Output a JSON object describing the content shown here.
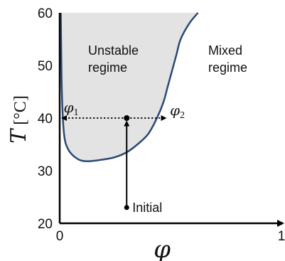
{
  "chart_data": {
    "type": "line",
    "title": "",
    "xlabel": "φ",
    "ylabel": "T",
    "ylabel_unit": "[°C]",
    "xlim": [
      0,
      1
    ],
    "ylim": [
      20,
      60
    ],
    "x_ticks": [
      "0",
      "1"
    ],
    "y_ticks": [
      "20",
      "30",
      "40",
      "50",
      "60"
    ],
    "grid": false,
    "curve": {
      "x": [
        0.005,
        0.01,
        0.02,
        0.04,
        0.08,
        0.12,
        0.18,
        0.25,
        0.31,
        0.36,
        0.41,
        0.45,
        0.48,
        0.5,
        0.52,
        0.54,
        0.56,
        0.6,
        0.64
      ],
      "y": [
        60,
        45,
        37,
        34,
        32.3,
        31.8,
        32,
        32.5,
        33.5,
        35,
        37,
        40,
        43,
        46,
        49,
        52,
        55,
        58,
        60
      ]
    },
    "regions": {
      "unstable": "Unstable\nregime",
      "mixed": "Mixed\nregime"
    },
    "annotations": {
      "initial_label": "Initial",
      "initial_point": {
        "x": 0.31,
        "y": 23
      },
      "quench_point": {
        "x": 0.31,
        "y": 40
      },
      "phi1": {
        "x": 0.005,
        "y": 40,
        "base": "φ",
        "sub": "1"
      },
      "phi2": {
        "x": 0.49,
        "y": 40,
        "base": "φ",
        "sub": "2"
      }
    },
    "colors": {
      "curve": "#2a4a75",
      "unstable_fill": "#e3e3e3",
      "axis": "#000000"
    }
  }
}
